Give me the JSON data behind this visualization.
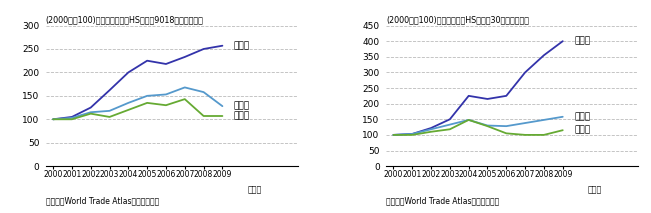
{
  "years": [
    2000,
    2001,
    2002,
    2003,
    2004,
    2005,
    2006,
    2007,
    2008,
    2009
  ],
  "chart1": {
    "title": "(2000年＝100)　医療用機器（HSコード9018）の輸出動向",
    "ylim": [
      0,
      300
    ],
    "yticks": [
      0,
      50,
      100,
      150,
      200,
      250,
      300
    ],
    "china": [
      100,
      105,
      125,
      162,
      200,
      225,
      218,
      233,
      250,
      257
    ],
    "world": [
      100,
      103,
      115,
      118,
      135,
      150,
      153,
      168,
      158,
      128
    ],
    "usa": [
      100,
      100,
      112,
      105,
      120,
      135,
      130,
      143,
      107,
      107
    ],
    "china_label": "対中国",
    "world_label": "対世界",
    "usa_label": "対米国"
  },
  "chart2": {
    "title": "(2000年＝100)　医療用品（HSコード30）の輸出動向",
    "ylim": [
      0,
      450
    ],
    "yticks": [
      0,
      50,
      100,
      150,
      200,
      250,
      300,
      350,
      400,
      450
    ],
    "china": [
      100,
      103,
      122,
      150,
      225,
      215,
      225,
      300,
      355,
      400
    ],
    "world": [
      100,
      103,
      118,
      133,
      148,
      130,
      128,
      138,
      148,
      158
    ],
    "usa": [
      100,
      100,
      110,
      118,
      148,
      128,
      105,
      100,
      100,
      115
    ],
    "china_label": "対中国",
    "world_label": "対世界",
    "usa_label": "対米国"
  },
  "source": "資料：『World Trade Atlas』から作成。",
  "china_color": "#3333aa",
  "world_color": "#5599cc",
  "usa_color": "#66aa33",
  "linewidth": 1.3
}
